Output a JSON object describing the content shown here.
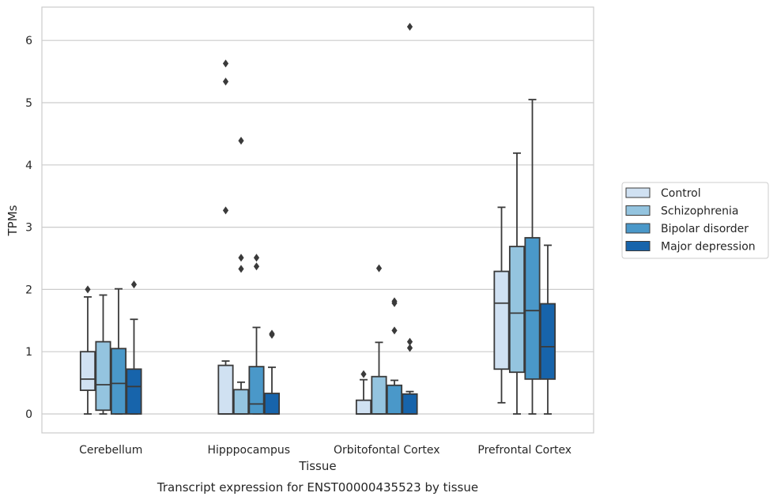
{
  "chart_data": {
    "type": "box",
    "title": "",
    "caption": "Transcript expression for ENST00000435523 by tissue",
    "xlabel": "Tissue",
    "ylabel": "TPMs",
    "ylim": [
      -0.3,
      6.55
    ],
    "yticks": [
      "0",
      "1",
      "2",
      "3",
      "4",
      "5",
      "6"
    ],
    "grid": "horizontal",
    "legend_position": "right",
    "categories": [
      "Cerebellum",
      "Hipppocampus",
      "Orbitofontal Cortex",
      "Prefrontal Cortex"
    ],
    "series": [
      {
        "name": "Control",
        "color": "#d0e1f2",
        "boxes": [
          {
            "whislo": 0.0,
            "q1": 0.38,
            "med": 0.56,
            "q3": 1.0,
            "whishi": 1.88,
            "fliers": [
              2.0
            ]
          },
          {
            "whislo": 0.0,
            "q1": 0.0,
            "med": 0.0,
            "q3": 0.78,
            "whishi": 0.85,
            "fliers": [
              3.27,
              5.34,
              5.63
            ]
          },
          {
            "whislo": 0.0,
            "q1": 0.0,
            "med": 0.0,
            "q3": 0.22,
            "whishi": 0.55,
            "fliers": [
              0.64
            ]
          },
          {
            "whislo": 0.18,
            "q1": 0.72,
            "med": 1.78,
            "q3": 2.29,
            "whishi": 3.32,
            "fliers": []
          }
        ]
      },
      {
        "name": "Schizophrenia",
        "color": "#94c4df",
        "boxes": [
          {
            "whislo": 0.0,
            "q1": 0.06,
            "med": 0.47,
            "q3": 1.16,
            "whishi": 1.91,
            "fliers": []
          },
          {
            "whislo": 0.0,
            "q1": 0.0,
            "med": 0.0,
            "q3": 0.39,
            "whishi": 0.51,
            "fliers": [
              2.33,
              2.51,
              4.39
            ]
          },
          {
            "whislo": 0.0,
            "q1": 0.0,
            "med": 0.0,
            "q3": 0.6,
            "whishi": 1.15,
            "fliers": [
              2.34
            ]
          },
          {
            "whislo": 0.0,
            "q1": 0.67,
            "med": 1.62,
            "q3": 2.69,
            "whishi": 4.19,
            "fliers": []
          }
        ]
      },
      {
        "name": "Bipolar disorder",
        "color": "#4a98c9",
        "boxes": [
          {
            "whislo": 0.0,
            "q1": 0.0,
            "med": 0.49,
            "q3": 1.05,
            "whishi": 2.01,
            "fliers": []
          },
          {
            "whislo": 0.0,
            "q1": 0.0,
            "med": 0.16,
            "q3": 0.76,
            "whishi": 1.39,
            "fliers": [
              2.37,
              2.51
            ]
          },
          {
            "whislo": 0.0,
            "q1": 0.0,
            "med": 0.0,
            "q3": 0.46,
            "whishi": 0.54,
            "fliers": [
              1.34,
              1.78,
              1.81
            ]
          },
          {
            "whislo": 0.0,
            "q1": 0.56,
            "med": 1.66,
            "q3": 2.83,
            "whishi": 5.05,
            "fliers": []
          }
        ]
      },
      {
        "name": "Major depression",
        "color": "#1764ab",
        "boxes": [
          {
            "whislo": 0.0,
            "q1": 0.0,
            "med": 0.44,
            "q3": 0.72,
            "whishi": 1.52,
            "fliers": [
              2.08
            ]
          },
          {
            "whislo": 0.0,
            "q1": 0.0,
            "med": 0.0,
            "q3": 0.33,
            "whishi": 0.75,
            "fliers": [
              1.27,
              1.29
            ]
          },
          {
            "whislo": 0.0,
            "q1": 0.0,
            "med": 0.0,
            "q3": 0.32,
            "whishi": 0.36,
            "fliers": [
              1.06,
              1.16,
              6.22
            ]
          },
          {
            "whislo": 0.0,
            "q1": 0.56,
            "med": 1.08,
            "q3": 1.77,
            "whishi": 2.71,
            "fliers": []
          }
        ]
      }
    ]
  }
}
